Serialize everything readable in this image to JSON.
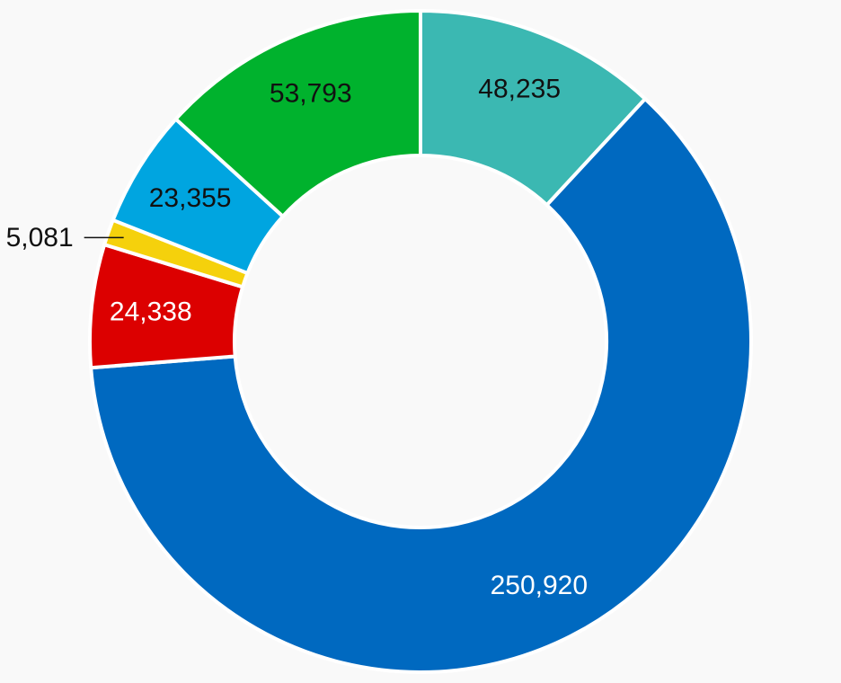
{
  "chart_data": {
    "type": "pie",
    "variant": "donut",
    "title": "",
    "legend": "none",
    "slices": [
      {
        "value": 48235,
        "label": "48,235",
        "color": "#3bb8b2",
        "label_color": "#111111",
        "label_placement": "inside"
      },
      {
        "value": 250920,
        "label": "250,920",
        "color": "#0069c0",
        "label_color": "#ffffff",
        "label_placement": "inside"
      },
      {
        "value": 24338,
        "label": "24,338",
        "color": "#dc0000",
        "label_color": "#ffffff",
        "label_placement": "inside"
      },
      {
        "value": 5081,
        "label": "5,081",
        "color": "#f5d10c",
        "label_color": "#111111",
        "label_placement": "outside"
      },
      {
        "value": 23355,
        "label": "23,355",
        "color": "#00a5e0",
        "label_color": "#111111",
        "label_placement": "inside"
      },
      {
        "value": 53793,
        "label": "53,793",
        "color": "#00b22d",
        "label_color": "#111111",
        "label_placement": "inside"
      }
    ]
  }
}
